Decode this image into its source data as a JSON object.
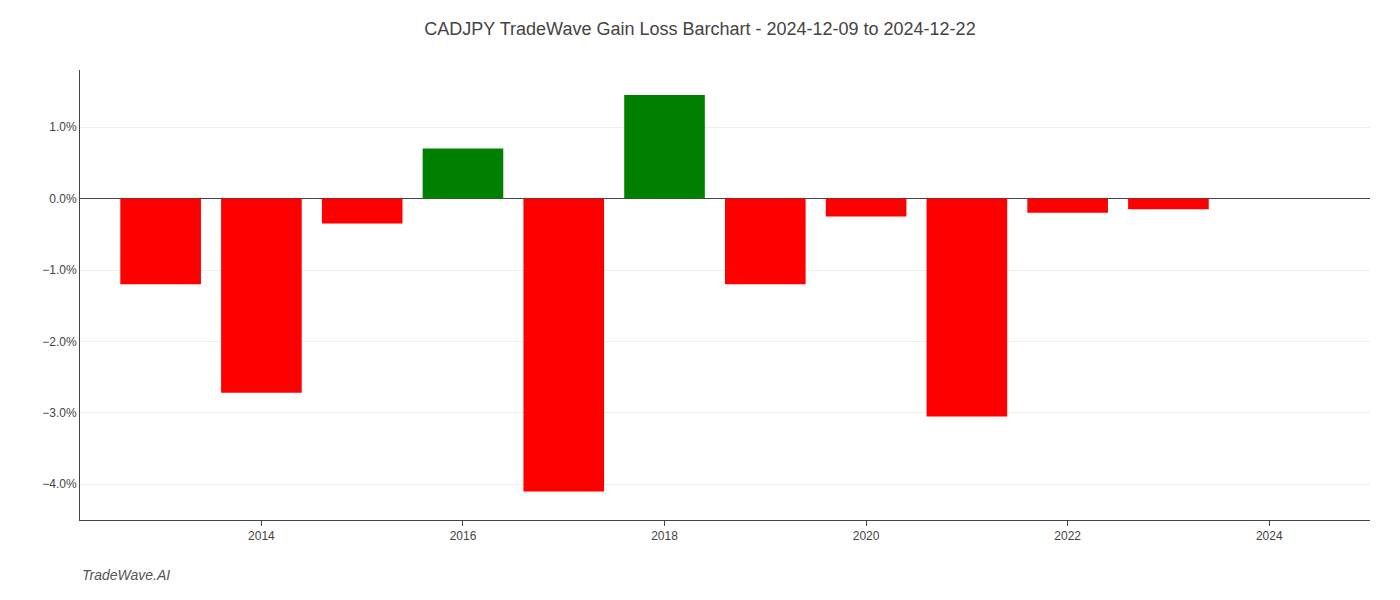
{
  "chart_data": {
    "type": "bar",
    "title": "CADJPY TradeWave Gain Loss Barchart - 2024-12-09 to 2024-12-22",
    "annotations": [
      "TradeWave.AI"
    ],
    "x": [
      2013,
      2014,
      2015,
      2016,
      2017,
      2018,
      2019,
      2020,
      2021,
      2022,
      2023
    ],
    "values": [
      -1.2,
      -2.72,
      -0.35,
      0.7,
      -4.1,
      1.45,
      -1.2,
      -0.25,
      -3.05,
      -0.2,
      -0.15
    ],
    "colors": [
      "#ff0000",
      "#ff0000",
      "#ff0000",
      "#008000",
      "#ff0000",
      "#008000",
      "#ff0000",
      "#ff0000",
      "#ff0000",
      "#ff0000",
      "#ff0000"
    ],
    "xlim": [
      2012.2,
      2025.0
    ],
    "xticks": [
      2014,
      2016,
      2018,
      2020,
      2022,
      2024
    ],
    "ylim": [
      -4.5,
      1.8
    ],
    "yticks": [
      {
        "value": -4.0,
        "label": "−4.0%"
      },
      {
        "value": -3.0,
        "label": "−3.0%"
      },
      {
        "value": -2.0,
        "label": "−2.0%"
      },
      {
        "value": -1.0,
        "label": "−1.0%"
      },
      {
        "value": 0.0,
        "label": "0.0%"
      },
      {
        "value": 1.0,
        "label": "1.0%"
      }
    ],
    "grid": true
  }
}
